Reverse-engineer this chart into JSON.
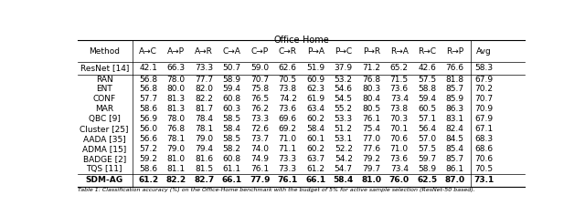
{
  "title": "Office-Home",
  "col_labels": [
    "Method",
    "A→C",
    "A→P",
    "A→R",
    "C→A",
    "C→P",
    "C→R",
    "P→A",
    "P→C",
    "P→R",
    "R→A",
    "R→C",
    "R→P",
    "Avg"
  ],
  "rows": [
    {
      "method": "ResNet [14]",
      "values": [
        42.1,
        66.3,
        73.3,
        50.7,
        59.0,
        62.6,
        51.9,
        37.9,
        71.2,
        65.2,
        42.6,
        76.6,
        58.3
      ],
      "bold": false,
      "ref": true
    },
    {
      "method": "RAN",
      "values": [
        56.8,
        78.0,
        77.7,
        58.9,
        70.7,
        70.5,
        60.9,
        53.2,
        76.8,
        71.5,
        57.5,
        81.8,
        67.9
      ],
      "bold": false,
      "ref": false
    },
    {
      "method": "ENT",
      "values": [
        56.8,
        80.0,
        82.0,
        59.4,
        75.8,
        73.8,
        62.3,
        54.6,
        80.3,
        73.6,
        58.8,
        85.7,
        70.2
      ],
      "bold": false,
      "ref": false
    },
    {
      "method": "CONF",
      "values": [
        57.7,
        81.3,
        82.2,
        60.8,
        76.5,
        74.2,
        61.9,
        54.5,
        80.4,
        73.4,
        59.4,
        85.9,
        70.7
      ],
      "bold": false,
      "ref": false
    },
    {
      "method": "MAR",
      "values": [
        58.6,
        81.3,
        81.7,
        60.3,
        76.2,
        73.6,
        63.4,
        55.2,
        80.5,
        73.8,
        60.5,
        86.3,
        70.9
      ],
      "bold": false,
      "ref": false
    },
    {
      "method": "QBC [9]",
      "values": [
        56.9,
        78.0,
        78.4,
        58.5,
        73.3,
        69.6,
        60.2,
        53.3,
        76.1,
        70.3,
        57.1,
        83.1,
        67.9
      ],
      "bold": false,
      "ref": false
    },
    {
      "method": "Cluster [25]",
      "values": [
        56.0,
        76.8,
        78.1,
        58.4,
        72.6,
        69.2,
        58.4,
        51.2,
        75.4,
        70.1,
        56.4,
        82.4,
        67.1
      ],
      "bold": false,
      "ref": false
    },
    {
      "method": "AADA [35]",
      "values": [
        56.6,
        78.1,
        79.0,
        58.5,
        73.7,
        71.0,
        60.1,
        53.1,
        77.0,
        70.6,
        57.0,
        84.5,
        68.3
      ],
      "bold": false,
      "ref": false
    },
    {
      "method": "ADMA [15]",
      "values": [
        57.2,
        79.0,
        79.4,
        58.2,
        74.0,
        71.1,
        60.2,
        52.2,
        77.6,
        71.0,
        57.5,
        85.4,
        68.6
      ],
      "bold": false,
      "ref": false
    },
    {
      "method": "BADGE [2]",
      "values": [
        59.2,
        81.0,
        81.6,
        60.8,
        74.9,
        73.3,
        63.7,
        54.2,
        79.2,
        73.6,
        59.7,
        85.7,
        70.6
      ],
      "bold": false,
      "ref": false
    },
    {
      "method": "TQS [11]",
      "values": [
        58.6,
        81.1,
        81.5,
        61.1,
        76.1,
        73.3,
        61.2,
        54.7,
        79.7,
        73.4,
        58.9,
        86.1,
        70.5
      ],
      "bold": false,
      "ref": false
    },
    {
      "method": "SDM-AG",
      "values": [
        61.2,
        82.2,
        82.7,
        66.1,
        77.9,
        76.1,
        66.1,
        58.4,
        81.0,
        76.0,
        62.5,
        87.0,
        73.1
      ],
      "bold": true,
      "ref": false
    }
  ],
  "caption": "Table 1: Classification accuracy (%) on the Office-Home benchmark with the budget of 5% for active sample selection (ResNet-50 based).",
  "ref_color": "#00aa00",
  "fontsize": 6.5,
  "caption_fontsize": 4.5
}
